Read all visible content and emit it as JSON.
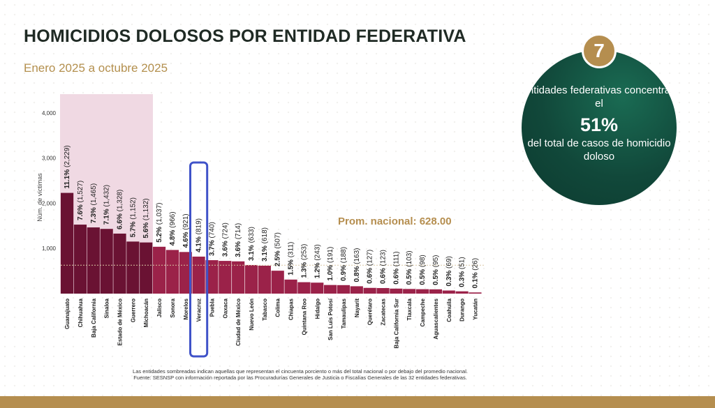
{
  "header": {
    "title": "HOMICIDIOS DOLOSOS POR ENTIDAD FEDERATIVA",
    "subtitle": "Enero 2025 a octubre 2025"
  },
  "callout": {
    "badge": "7",
    "line1": "entidades federativas concentran el",
    "big": "51%",
    "line2": "del total de casos de homicidio doloso"
  },
  "footnote": {
    "line1": "Las entidades sombreadas indican aquellas que representan el cincuenta porciento o más del total nacional o por debajo del promedio nacional.",
    "line2": "Fuente: SESNSP con información reportada por las Procuradurías Generales de Justicia o Fiscalías Generales de las 32 entidades federativas."
  },
  "chart_data": {
    "type": "bar",
    "ylabel": "Núm. de víctimas",
    "ylim": [
      0,
      4000
    ],
    "yticks": [
      "4,000",
      "3,000",
      "2,000",
      "1,000"
    ],
    "average_label": "Prom. nacional: 628.00",
    "average": 628,
    "highlighted_count": 7,
    "boxed_category": "Veracruz",
    "categories": [
      "Guanajuato",
      "Chihuahua",
      "Baja California",
      "Sinaloa",
      "Estado de México",
      "Guerrero",
      "Michoacán",
      "Jalisco",
      "Sonora",
      "Morelos",
      "Veracruz",
      "Puebla",
      "Oaxaca",
      "Ciudad de México",
      "Nuevo León",
      "Tabasco",
      "Colima",
      "Chiapas",
      "Quintana Roo",
      "Hidalgo",
      "San Luis Potosí",
      "Tamaulipas",
      "Nayarit",
      "Querétaro",
      "Zacatecas",
      "Baja California Sur",
      "Tlaxcala",
      "Campeche",
      "Aguascalientes",
      "Coahuila",
      "Durango",
      "Yucatán"
    ],
    "values": [
      2229,
      1527,
      1465,
      1432,
      1328,
      1152,
      1132,
      1037,
      966,
      921,
      819,
      740,
      724,
      714,
      633,
      618,
      507,
      311,
      253,
      243,
      191,
      188,
      163,
      127,
      123,
      111,
      103,
      98,
      95,
      69,
      51,
      26
    ],
    "pct_labels": [
      "11.1%",
      "7.6%",
      "7.3%",
      "7.1%",
      "6.6%",
      "5.7%",
      "5.6%",
      "5.2%",
      "4.8%",
      "4.6%",
      "4.1%",
      "3.7%",
      "3.6%",
      "3.6%",
      "3.1%",
      "3.1%",
      "2.5%",
      "1.5%",
      "1.3%",
      "1.2%",
      "1.0%",
      "0.9%",
      "0.8%",
      "0.6%",
      "0.6%",
      "0.6%",
      "0.5%",
      "0.5%",
      "0.5%",
      "0.3%",
      "0.3%",
      "0.1%"
    ],
    "count_labels": [
      "(2,229)",
      "(1,527)",
      "(1,465)",
      "(1,432)",
      "(1,328)",
      "(1,152)",
      "(1,132)",
      "(1,037)",
      "(966)",
      "(921)",
      "(819)",
      "(740)",
      "(724)",
      "(714)",
      "(633)",
      "(618)",
      "(507)",
      "(311)",
      "(253)",
      "(243)",
      "(191)",
      "(188)",
      "(163)",
      "(127)",
      "(123)",
      "(111)",
      "(103)",
      "(98)",
      "(95)",
      "(69)",
      "(51)",
      "(26)"
    ],
    "colors": {
      "highlight_bar": "#6a1233",
      "bar": "#9b2249",
      "shade": "#f0d9e3",
      "average_text": "#b58e4f",
      "average_line": "#d9c7a3",
      "box": "#3f52c8"
    }
  }
}
